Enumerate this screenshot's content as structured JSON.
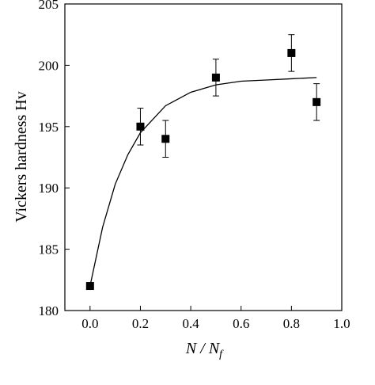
{
  "chart_data": {
    "type": "scatter",
    "x": [
      0,
      0.2,
      0.3,
      0.5,
      0.8,
      0.9
    ],
    "values": [
      182,
      195,
      194,
      199,
      201,
      197
    ],
    "errors": [
      null,
      1.5,
      1.5,
      1.5,
      1.5,
      1.5
    ],
    "color": "#000000",
    "fit": {
      "x": [
        0,
        0.05,
        0.1,
        0.15,
        0.2,
        0.3,
        0.4,
        0.5,
        0.6,
        0.7,
        0.8,
        0.9
      ],
      "values": [
        182,
        186.8,
        190.3,
        192.7,
        194.5,
        196.7,
        197.8,
        198.4,
        198.7,
        198.8,
        198.9,
        199
      ]
    },
    "xlim": [
      -0.1,
      1.0
    ],
    "ylim": [
      180,
      205
    ],
    "xticks": [
      {
        "value": 0,
        "label": "0.0"
      },
      {
        "value": 0.2,
        "label": "0.2"
      },
      {
        "value": 0.4,
        "label": "0.4"
      },
      {
        "value": 0.6,
        "label": "0.6"
      },
      {
        "value": 0.8,
        "label": "0.8"
      },
      {
        "value": 1,
        "label": "1.0"
      }
    ],
    "yticks": [
      180,
      185,
      190,
      195,
      200,
      205
    ],
    "ylabel": "Vickers hardness Hv",
    "xlabel": {
      "main": "N / N",
      "sub": "f"
    }
  }
}
